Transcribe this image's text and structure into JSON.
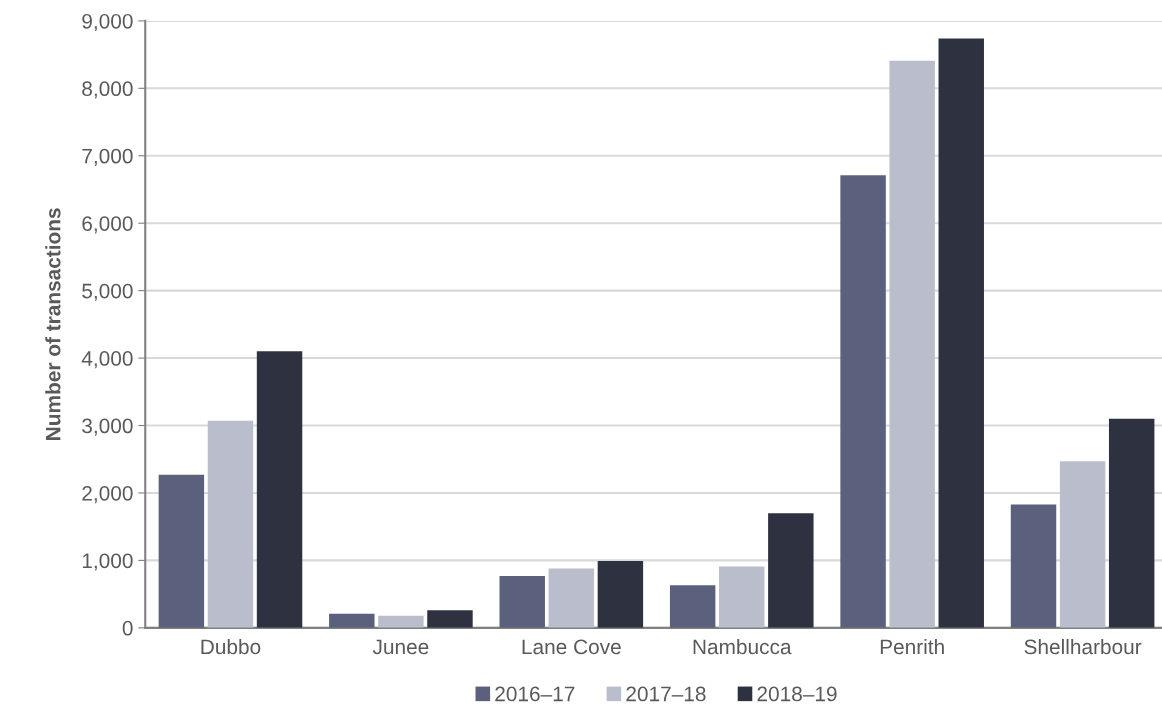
{
  "chart_data": {
    "type": "bar",
    "ylabel": "Number of transactions",
    "categories": [
      "Dubbo",
      "Junee",
      "Lane Cove",
      "Nambucca",
      "Penrith",
      "Shellharbour"
    ],
    "series": [
      {
        "name": "2016–17",
        "color": "#5b617d",
        "values": [
          2270,
          210,
          770,
          630,
          6710,
          1830
        ]
      },
      {
        "name": "2017–18",
        "color": "#babdcc",
        "values": [
          3070,
          180,
          880,
          910,
          8410,
          2470
        ]
      },
      {
        "name": "2018–19",
        "color": "#2e3140",
        "values": [
          4100,
          260,
          990,
          1700,
          8740,
          3100
        ]
      }
    ],
    "ylim": [
      0,
      9000
    ],
    "yticks": [
      {
        "value": 0,
        "label": "0"
      },
      {
        "value": 1000,
        "label": "1,000"
      },
      {
        "value": 2000,
        "label": "2,000"
      },
      {
        "value": 3000,
        "label": "3,000"
      },
      {
        "value": 4000,
        "label": "4,000"
      },
      {
        "value": 5000,
        "label": "5,000"
      },
      {
        "value": 6000,
        "label": "6,000"
      },
      {
        "value": 7000,
        "label": "7,000"
      },
      {
        "value": 8000,
        "label": "8,000"
      },
      {
        "value": 9000,
        "label": "9,000"
      }
    ],
    "grid": "y",
    "legend": "bottom"
  }
}
